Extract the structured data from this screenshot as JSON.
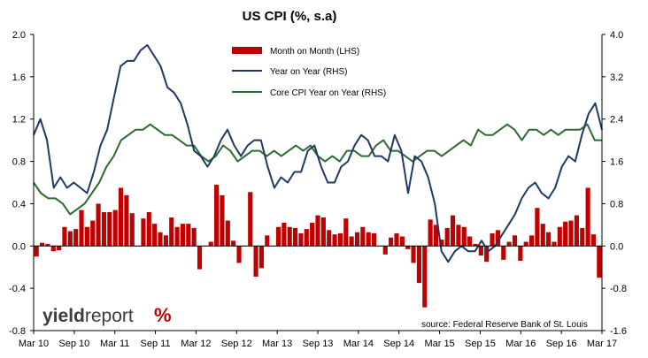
{
  "chart_data": {
    "type": "bar+line",
    "title": "US CPI (%, s.a)",
    "source": "source: Federal Reserve Bank of St. Louis",
    "logo": {
      "text_a": "yield",
      "text_b": "report",
      "mark": "%"
    },
    "x_start": "Mar 10",
    "x_end": "Mar 17",
    "x_tick_labels": [
      "Mar 10",
      "Sep 10",
      "Mar 11",
      "Sep 11",
      "Mar 12",
      "Sep 12",
      "Mar 13",
      "Sep 13",
      "Mar 14",
      "Sep 14",
      "Mar 15",
      "Sep 15",
      "Mar 16",
      "Sep 16",
      "Mar 17"
    ],
    "y_left": {
      "min": -0.8,
      "max": 2.0,
      "ticks": [
        "-0.8",
        "-0.4",
        "0.0",
        "0.4",
        "0.8",
        "1.2",
        "1.6",
        "2.0"
      ]
    },
    "y_right": {
      "min": -1.6,
      "max": 4.0,
      "ticks": [
        "-1.6",
        "-0.8",
        "0.0",
        "0.8",
        "1.6",
        "2.4",
        "3.2",
        "4.0"
      ]
    },
    "legend_position": "top-center",
    "colors": {
      "bars": "#c00000",
      "yoy": "#1f3864",
      "core": "#2e6b30",
      "axis": "#000000"
    },
    "series": [
      {
        "name": "Month on Month (LHS)",
        "type": "bar",
        "axis": "left",
        "values": [
          -0.1,
          0.03,
          0.02,
          -0.05,
          -0.04,
          0.18,
          0.14,
          0.16,
          0.34,
          0.18,
          0.24,
          0.4,
          0.32,
          0.32,
          0.34,
          0.55,
          0.48,
          0.31,
          0.0,
          0.26,
          0.32,
          0.21,
          0.13,
          0.1,
          0.27,
          0.18,
          0.21,
          0.21,
          0.17,
          -0.22,
          0.0,
          0.04,
          0.58,
          0.48,
          0.24,
          0.05,
          -0.16,
          0.0,
          0.51,
          -0.29,
          -0.21,
          0.1,
          0.0,
          0.18,
          0.22,
          0.18,
          0.17,
          0.12,
          0.16,
          0.22,
          0.29,
          0.27,
          0.15,
          0.11,
          0.12,
          0.26,
          0.09,
          0.13,
          0.18,
          0.13,
          0.12,
          0.0,
          -0.08,
          0.08,
          0.12,
          0.09,
          -0.03,
          -0.16,
          -0.35,
          -0.58,
          0.25,
          0.2,
          0.06,
          0.17,
          0.29,
          0.2,
          0.18,
          0.09,
          0.02,
          -0.09,
          -0.15,
          0.12,
          0.15,
          -0.13,
          0.04,
          0.1,
          -0.14,
          0.04,
          0.1,
          0.36,
          0.21,
          0.13,
          0.04,
          0.18,
          0.23,
          0.24,
          0.29,
          0.17,
          0.55,
          0.11,
          -0.3
        ]
      },
      {
        "name": "Year on Year (RHS)",
        "type": "line",
        "axis": "right",
        "values": [
          2.1,
          2.4,
          2.0,
          1.1,
          1.3,
          1.1,
          1.2,
          1.1,
          1.0,
          1.4,
          1.9,
          2.2,
          2.8,
          3.4,
          3.5,
          3.5,
          3.7,
          3.8,
          3.6,
          3.4,
          3.0,
          2.9,
          2.7,
          2.3,
          1.8,
          1.7,
          1.5,
          1.7,
          2.0,
          2.2,
          1.9,
          1.7,
          1.9,
          2.0,
          2.0,
          1.5,
          1.1,
          1.3,
          1.2,
          1.4,
          1.4,
          1.8,
          1.9,
          1.5,
          1.2,
          1.2,
          1.5,
          1.6,
          1.9,
          2.1,
          2.0,
          1.7,
          1.7,
          1.6,
          2.1,
          1.8,
          1.0,
          1.7,
          1.6,
          1.3,
          0.8,
          -0.1,
          -0.3,
          -0.1,
          0.0,
          -0.1,
          -0.1,
          0.1,
          -0.1,
          0.0,
          0.2,
          0.4,
          0.6,
          0.9,
          1.1,
          1.2,
          1.0,
          0.9,
          1.1,
          1.5,
          1.7,
          1.6,
          2.1,
          2.5,
          2.7,
          2.2
        ]
      },
      {
        "name": "Core CPI Year on Year (RHS)",
        "type": "line",
        "axis": "right",
        "values": [
          1.2,
          1.0,
          0.9,
          0.9,
          0.8,
          0.6,
          0.7,
          0.8,
          1.0,
          1.2,
          1.5,
          1.7,
          2.0,
          2.1,
          2.2,
          2.2,
          2.3,
          2.2,
          2.1,
          2.1,
          2.0,
          1.9,
          1.9,
          1.7,
          1.6,
          1.7,
          1.9,
          1.8,
          1.6,
          1.7,
          1.8,
          1.8,
          1.7,
          1.8,
          1.7,
          1.8,
          1.9,
          1.8,
          1.9,
          1.7,
          1.6,
          1.7,
          1.6,
          1.8,
          1.8,
          1.7,
          1.7,
          1.9,
          2.0,
          1.8,
          1.8,
          1.7,
          1.6,
          1.7,
          1.8,
          1.8,
          1.7,
          1.8,
          1.9,
          2.0,
          1.9,
          2.2,
          2.1,
          2.1,
          2.2,
          2.3,
          2.2,
          2.0,
          2.2,
          2.2,
          2.1,
          2.2,
          2.1,
          2.2,
          2.2,
          2.2,
          2.3,
          2.0,
          2.0
        ]
      }
    ]
  }
}
